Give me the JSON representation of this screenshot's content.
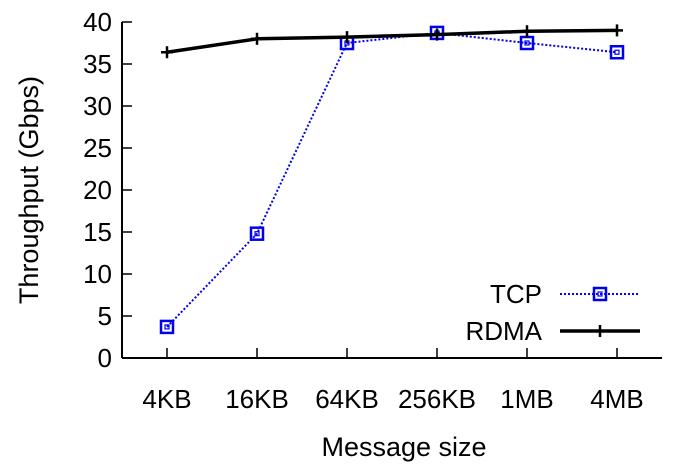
{
  "chart_data": {
    "type": "line",
    "categories": [
      "4KB",
      "16KB",
      "64KB",
      "256KB",
      "1MB",
      "4MB"
    ],
    "xlabel": "Message size",
    "ylabel": "Throughput (Gbps)",
    "ylim": [
      0,
      40
    ],
    "yticks": [
      0,
      5,
      10,
      15,
      20,
      25,
      30,
      35,
      40
    ],
    "grid": false,
    "legend_position": "bottom-right",
    "series": [
      {
        "name": "TCP",
        "values": [
          3.7,
          14.8,
          37.5,
          38.7,
          37.5,
          36.4
        ],
        "color": "#0000ee",
        "style": "dotted",
        "marker": "square"
      },
      {
        "name": "RDMA",
        "values": [
          36.4,
          38.0,
          38.2,
          38.5,
          38.9,
          39.0
        ],
        "color": "#000000",
        "style": "solid",
        "marker": "plus"
      }
    ]
  }
}
